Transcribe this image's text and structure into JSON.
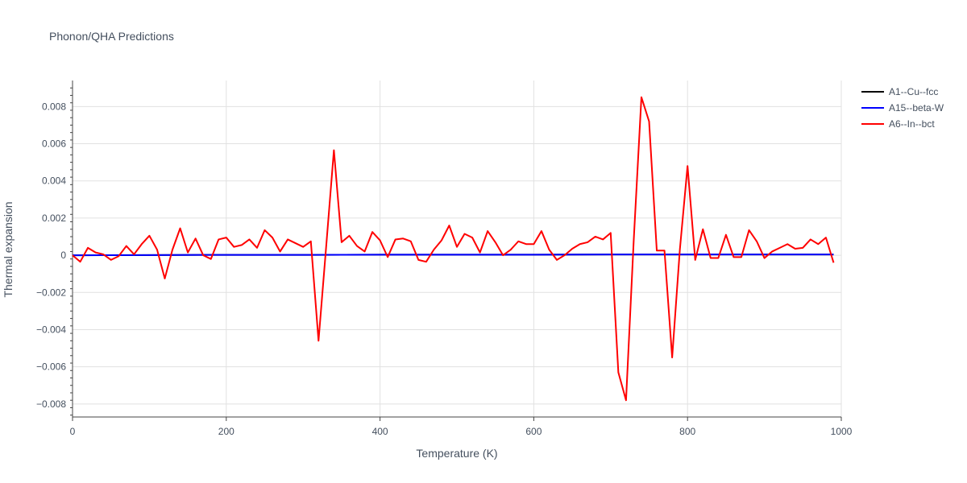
{
  "chart_data": {
    "type": "line",
    "title": "Phonon/QHA Predictions",
    "xlabel": "Temperature (K)",
    "ylabel": "Thermal expansion",
    "xlim": [
      0,
      1000
    ],
    "ylim": [
      -0.0087,
      0.0094
    ],
    "xticks": [
      0,
      200,
      400,
      600,
      800,
      1000
    ],
    "xtick_labels": [
      "0",
      "200",
      "400",
      "600",
      "800",
      "1000"
    ],
    "yticks": [
      -0.008,
      -0.006,
      -0.004,
      -0.002,
      0,
      0.002,
      0.004,
      0.006,
      0.008
    ],
    "ytick_labels": [
      "−0.008",
      "−0.006",
      "−0.004",
      "−0.002",
      "0",
      "0.002",
      "0.004",
      "0.006",
      "0.008"
    ],
    "grid": true,
    "legend_position": "top-right",
    "series": [
      {
        "name": "A1--Cu--fcc",
        "color": "#000000",
        "x": [
          0,
          100,
          200,
          300,
          400,
          500,
          600,
          700,
          800,
          900,
          990
        ],
        "y": [
          0,
          1e-05,
          2e-05,
          2e-05,
          3e-05,
          3e-05,
          3e-05,
          4e-05,
          4e-05,
          4e-05,
          4e-05
        ]
      },
      {
        "name": "A15--beta-W",
        "color": "#0000ff",
        "x": [
          0,
          100,
          200,
          300,
          400,
          500,
          600,
          700,
          800,
          900,
          990
        ],
        "y": [
          0,
          1e-05,
          2e-05,
          2e-05,
          3e-05,
          3e-05,
          3e-05,
          4e-05,
          4e-05,
          4e-05,
          4e-05
        ]
      },
      {
        "name": "A6--In--bct",
        "color": "#ff0000",
        "x": [
          0,
          10,
          20,
          30,
          40,
          50,
          60,
          70,
          80,
          90,
          100,
          110,
          120,
          130,
          140,
          150,
          160,
          170,
          180,
          190,
          200,
          210,
          220,
          230,
          240,
          250,
          260,
          270,
          280,
          290,
          300,
          310,
          320,
          330,
          340,
          350,
          360,
          370,
          380,
          390,
          400,
          410,
          420,
          430,
          440,
          450,
          460,
          470,
          480,
          490,
          500,
          510,
          520,
          530,
          540,
          550,
          560,
          570,
          580,
          590,
          600,
          610,
          620,
          630,
          640,
          650,
          660,
          670,
          680,
          690,
          700,
          710,
          720,
          730,
          740,
          750,
          760,
          770,
          780,
          790,
          800,
          810,
          820,
          830,
          840,
          850,
          860,
          870,
          880,
          890,
          900,
          910,
          920,
          930,
          940,
          950,
          960,
          970,
          980,
          990
        ],
        "y": [
          0,
          -0.00035,
          0.0004,
          0.00015,
          5e-05,
          -0.00025,
          -5e-05,
          0.0005,
          5e-05,
          0.0006,
          0.00105,
          0.0003,
          -0.00125,
          0.0003,
          0.00145,
          0.00015,
          0.0009,
          0.0,
          -0.0002,
          0.00085,
          0.00095,
          0.00045,
          0.00055,
          0.00085,
          0.0004,
          0.00135,
          0.00095,
          0.0002,
          0.00085,
          0.00065,
          0.00045,
          0.00075,
          -0.0046,
          0.0005,
          0.00565,
          0.0007,
          0.00105,
          0.0005,
          0.0002,
          0.00125,
          0.0008,
          -0.0001,
          0.00085,
          0.0009,
          0.00075,
          -0.00025,
          -0.00035,
          0.0003,
          0.0008,
          0.0016,
          0.00045,
          0.00115,
          0.00095,
          0.00015,
          0.0013,
          0.0007,
          0.0,
          0.0003,
          0.00075,
          0.0006,
          0.0006,
          0.0013,
          0.0003,
          -0.00025,
          0.0,
          0.00035,
          0.0006,
          0.0007,
          0.001,
          0.00085,
          0.0012,
          -0.0063,
          -0.0078,
          0.0008,
          0.0085,
          0.0072,
          0.00025,
          0.00025,
          -0.0055,
          0.0003,
          0.0048,
          -0.00025,
          0.0014,
          -0.00015,
          -0.00015,
          0.0011,
          -0.0001,
          -0.0001,
          0.00135,
          0.00075,
          -0.00015,
          0.0002,
          0.0004,
          0.0006,
          0.00035,
          0.0004,
          0.00085,
          0.0006,
          0.00095,
          -0.0004
        ]
      }
    ]
  }
}
